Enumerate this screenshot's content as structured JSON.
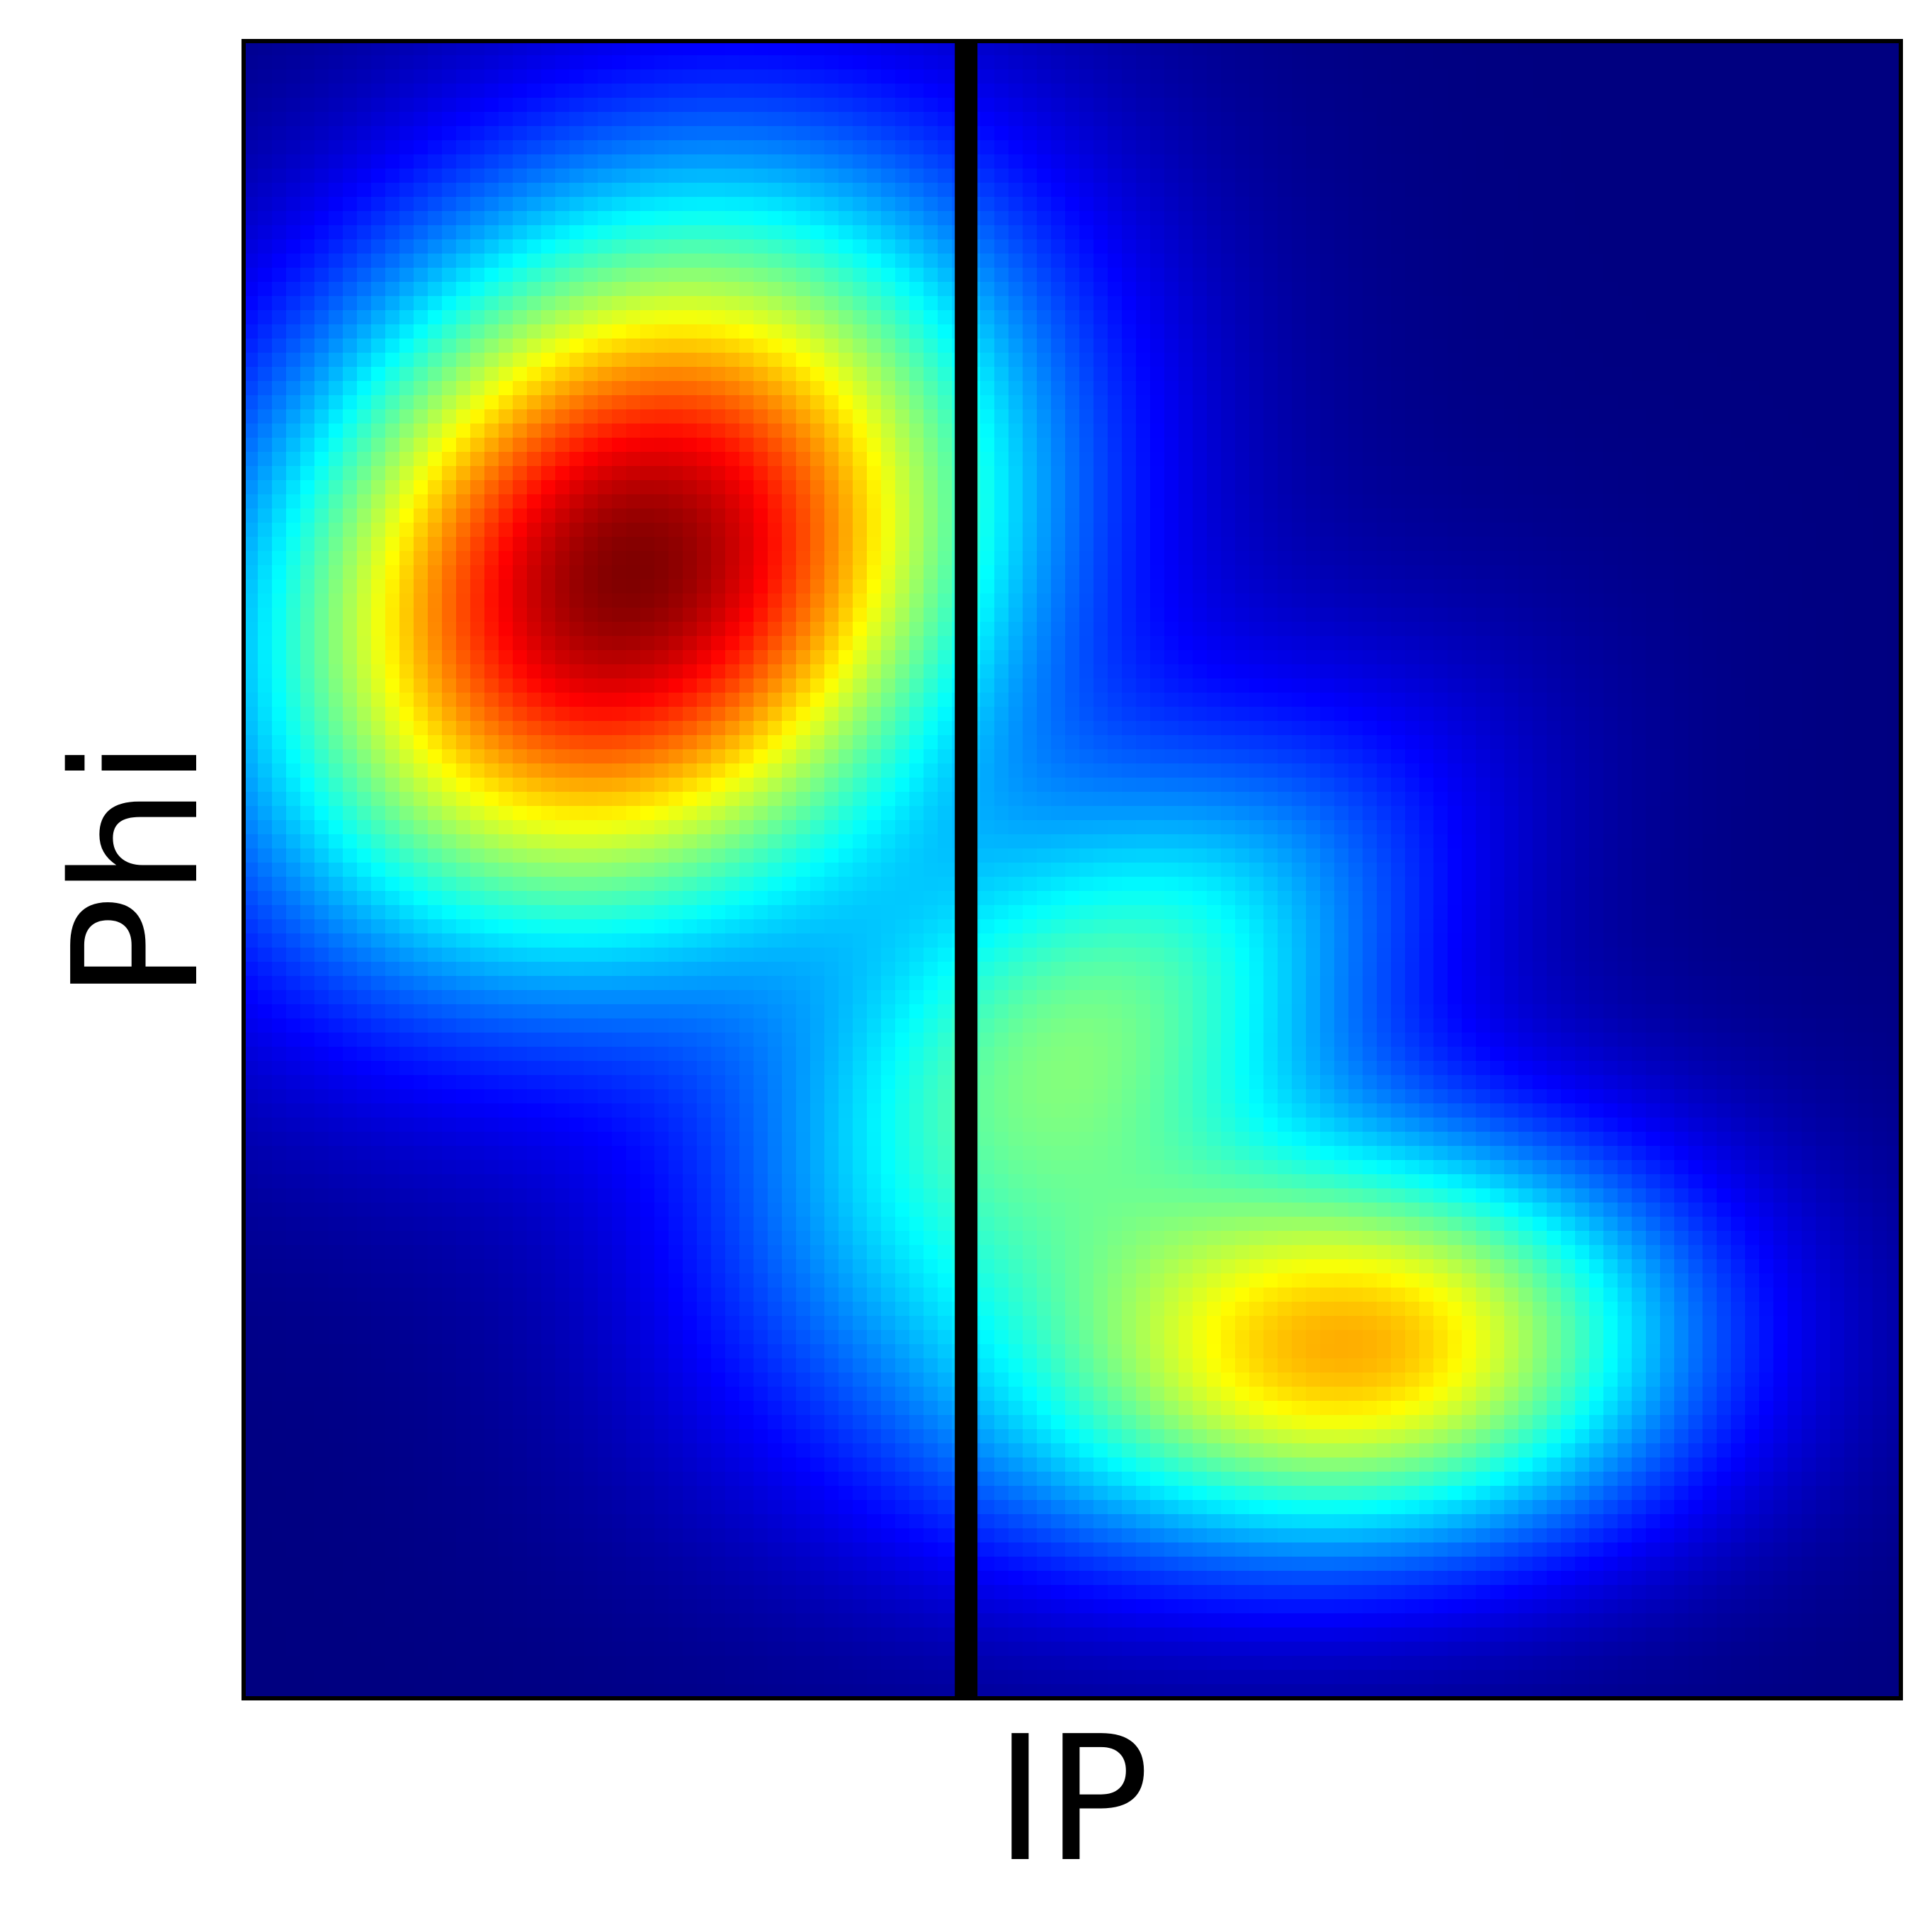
{
  "chart_data": {
    "type": "heatmap",
    "title": "",
    "xlabel": "IP",
    "ylabel": "Phi",
    "colormap": "jet",
    "colorbar": false,
    "grid": false,
    "ticks": false,
    "divider": {
      "orientation": "vertical",
      "x_fraction": 0.436,
      "color": "#000000"
    },
    "density_components": [
      {
        "x": 0.235,
        "y": 0.68,
        "sx": 0.155,
        "sy": 0.155,
        "rho": 0.2,
        "weight": 1.0
      },
      {
        "x": 0.505,
        "y": 0.4,
        "sx": 0.14,
        "sy": 0.12,
        "rho": 0.55,
        "weight": 0.45
      },
      {
        "x": 0.6,
        "y": 0.21,
        "sx": 0.16,
        "sy": 0.095,
        "rho": 0.3,
        "weight": 0.3
      },
      {
        "x": 0.7,
        "y": 0.205,
        "sx": 0.13,
        "sy": 0.085,
        "rho": 0.0,
        "weight": 0.44
      }
    ],
    "colors": {
      "border": "#000000",
      "background": "#ffffff"
    }
  }
}
